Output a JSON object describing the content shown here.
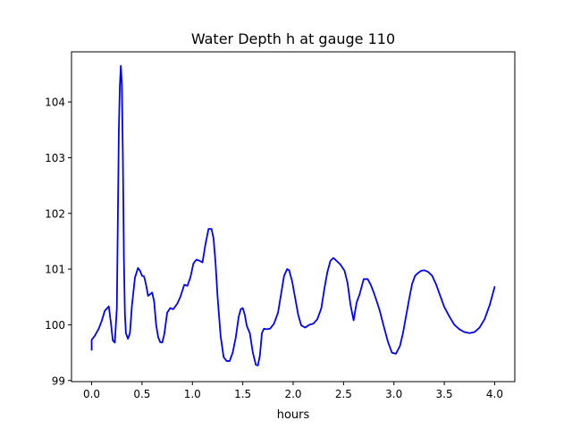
{
  "chart_data": {
    "type": "line",
    "title": "Water Depth h at gauge 110",
    "xlabel": "hours",
    "ylabel": "",
    "xlim": [
      -0.2,
      4.2
    ],
    "ylim": [
      98.98,
      104.9
    ],
    "xticks": [
      0.0,
      0.5,
      1.0,
      1.5,
      2.0,
      2.5,
      3.0,
      3.5,
      4.0
    ],
    "xtick_labels": [
      "0.0",
      "0.5",
      "1.0",
      "1.5",
      "2.0",
      "2.5",
      "3.0",
      "3.5",
      "4.0"
    ],
    "yticks": [
      99,
      100,
      101,
      102,
      103,
      104
    ],
    "ytick_labels": [
      "99",
      "100",
      "101",
      "102",
      "103",
      "104"
    ],
    "grid": false,
    "legend": "none",
    "series": [
      {
        "color": "#0000ff",
        "x": [
          0.0,
          0.0,
          0.03,
          0.07,
          0.1,
          0.13,
          0.17,
          0.19,
          0.21,
          0.23,
          0.25,
          0.27,
          0.28,
          0.29,
          0.3,
          0.31,
          0.32,
          0.33,
          0.34,
          0.36,
          0.38,
          0.4,
          0.43,
          0.46,
          0.48,
          0.5,
          0.52,
          0.54,
          0.56,
          0.58,
          0.6,
          0.62,
          0.64,
          0.66,
          0.68,
          0.7,
          0.72,
          0.75,
          0.78,
          0.81,
          0.85,
          0.88,
          0.92,
          0.95,
          0.98,
          1.01,
          1.04,
          1.07,
          1.1,
          1.13,
          1.16,
          1.19,
          1.21,
          1.23,
          1.25,
          1.28,
          1.31,
          1.34,
          1.37,
          1.4,
          1.43,
          1.46,
          1.48,
          1.5,
          1.52,
          1.54,
          1.57,
          1.6,
          1.63,
          1.65,
          1.67,
          1.69,
          1.71,
          1.74,
          1.77,
          1.81,
          1.85,
          1.88,
          1.91,
          1.94,
          1.96,
          1.99,
          2.02,
          2.05,
          2.08,
          2.12,
          2.16,
          2.2,
          2.24,
          2.28,
          2.31,
          2.34,
          2.37,
          2.4,
          2.43,
          2.47,
          2.51,
          2.54,
          2.57,
          2.6,
          2.63,
          2.66,
          2.7,
          2.74,
          2.77,
          2.8,
          2.83,
          2.86,
          2.9,
          2.94,
          2.98,
          3.02,
          3.06,
          3.09,
          3.12,
          3.15,
          3.18,
          3.21,
          3.24,
          3.27,
          3.3,
          3.34,
          3.38,
          3.42,
          3.46,
          3.5,
          3.55,
          3.6,
          3.65,
          3.7,
          3.75,
          3.8,
          3.85,
          3.9,
          3.95,
          4.0
        ],
        "values": [
          99.55,
          99.73,
          99.8,
          99.93,
          100.07,
          100.25,
          100.33,
          100.05,
          99.72,
          99.68,
          100.3,
          103.5,
          104.3,
          104.65,
          104.3,
          103.0,
          101.2,
          100.2,
          99.85,
          99.75,
          99.85,
          100.35,
          100.85,
          101.02,
          100.97,
          100.88,
          100.87,
          100.72,
          100.52,
          100.55,
          100.58,
          100.42,
          100.0,
          99.78,
          99.69,
          99.68,
          99.82,
          100.22,
          100.3,
          100.28,
          100.38,
          100.5,
          100.72,
          100.7,
          100.85,
          101.1,
          101.17,
          101.15,
          101.12,
          101.45,
          101.72,
          101.72,
          101.55,
          101.1,
          100.5,
          99.8,
          99.42,
          99.35,
          99.35,
          99.5,
          99.77,
          100.15,
          100.28,
          100.3,
          100.18,
          99.98,
          99.85,
          99.5,
          99.28,
          99.27,
          99.45,
          99.85,
          99.93,
          99.92,
          99.93,
          100.02,
          100.22,
          100.55,
          100.88,
          101.0,
          100.98,
          100.78,
          100.48,
          100.18,
          99.99,
          99.95,
          100.0,
          100.02,
          100.1,
          100.3,
          100.65,
          100.95,
          101.15,
          101.2,
          101.15,
          101.08,
          100.97,
          100.75,
          100.35,
          100.08,
          100.4,
          100.55,
          100.82,
          100.82,
          100.72,
          100.58,
          100.42,
          100.25,
          99.97,
          99.7,
          99.5,
          99.48,
          99.62,
          99.85,
          100.15,
          100.45,
          100.73,
          100.88,
          100.93,
          100.97,
          100.98,
          100.95,
          100.88,
          100.72,
          100.52,
          100.32,
          100.15,
          100.0,
          99.92,
          99.87,
          99.85,
          99.87,
          99.95,
          100.1,
          100.35,
          100.68
        ]
      }
    ]
  }
}
